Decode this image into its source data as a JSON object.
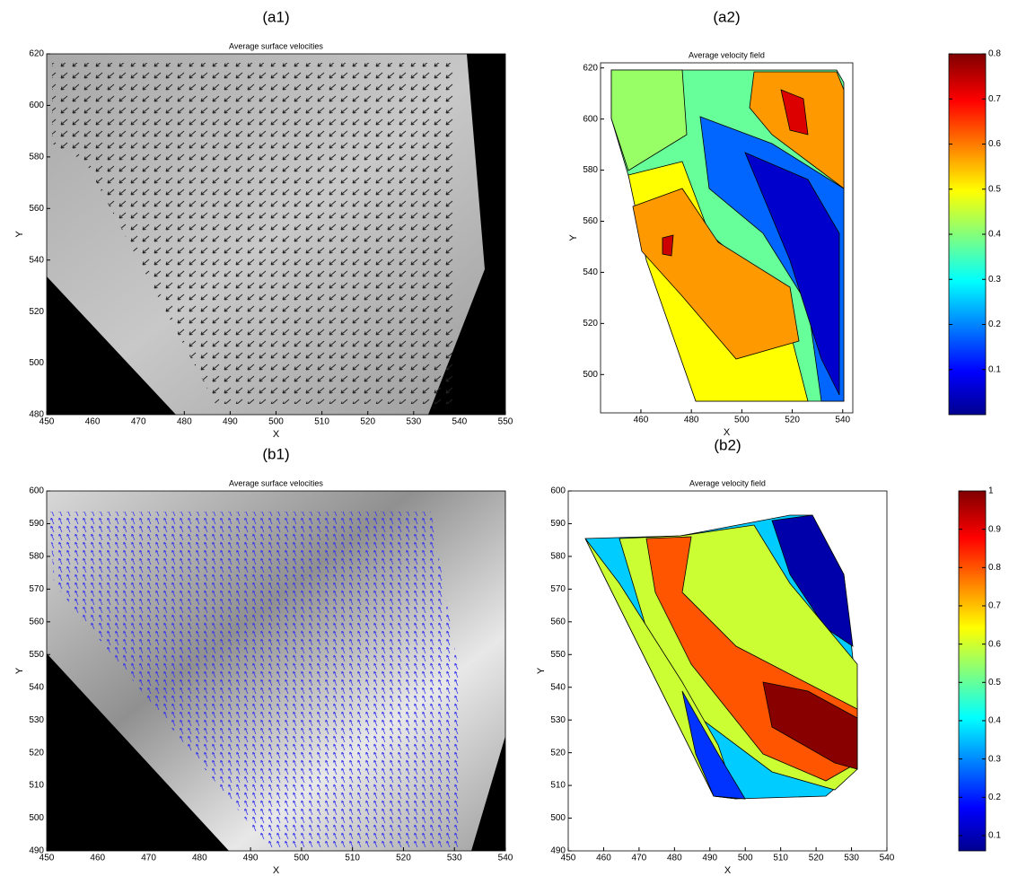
{
  "chart_data": [
    {
      "type": "quiver",
      "panel_label": "(a1)",
      "title": "Average surface velocities",
      "xlabel": "X",
      "ylabel": "Y",
      "xlim": [
        450,
        550
      ],
      "xticks": [
        450,
        460,
        470,
        480,
        490,
        500,
        510,
        520,
        530,
        540,
        550
      ],
      "ylim": [
        480,
        620
      ],
      "yticks": [
        480,
        500,
        520,
        540,
        560,
        580,
        600,
        620
      ],
      "color": "#222222"
    },
    {
      "type": "contour",
      "panel_label": "(a2)",
      "title": "Average velocity field",
      "xlabel": "X",
      "ylabel": "Y",
      "xlim": [
        444,
        544
      ],
      "xticks": [
        460,
        480,
        500,
        520,
        540
      ],
      "ylim": [
        485,
        622
      ],
      "yticks": [
        500,
        520,
        540,
        560,
        580,
        600,
        620
      ],
      "colormap": "jet",
      "colorbar": {
        "lim": [
          0,
          0.8
        ],
        "ticks": [
          0.1,
          0.2,
          0.3,
          0.4,
          0.5,
          0.6,
          0.7,
          0.8
        ]
      }
    },
    {
      "type": "quiver",
      "panel_label": "(b1)",
      "title": "Average surface velocities",
      "xlabel": "X",
      "ylabel": "Y",
      "xlim": [
        450,
        540
      ],
      "xticks": [
        450,
        460,
        470,
        480,
        490,
        500,
        510,
        520,
        530,
        540
      ],
      "ylim": [
        490,
        600
      ],
      "yticks": [
        490,
        500,
        510,
        520,
        530,
        540,
        550,
        560,
        570,
        580,
        590,
        600
      ],
      "color": "#3333ee"
    },
    {
      "type": "contour",
      "panel_label": "(b2)",
      "title": "Average velocity field",
      "xlabel": "X",
      "ylabel": "Y",
      "xlim": [
        450,
        540
      ],
      "xticks": [
        450,
        460,
        470,
        480,
        490,
        500,
        510,
        520,
        530,
        540
      ],
      "ylim": [
        490,
        600
      ],
      "yticks": [
        490,
        500,
        510,
        520,
        530,
        540,
        550,
        560,
        570,
        580,
        590,
        600
      ],
      "colormap": "jet",
      "colorbar": {
        "lim": [
          0.06,
          1
        ],
        "ticks": [
          0.1,
          0.2,
          0.3,
          0.4,
          0.5,
          0.6,
          0.7,
          0.8,
          0.9,
          1
        ]
      }
    }
  ]
}
